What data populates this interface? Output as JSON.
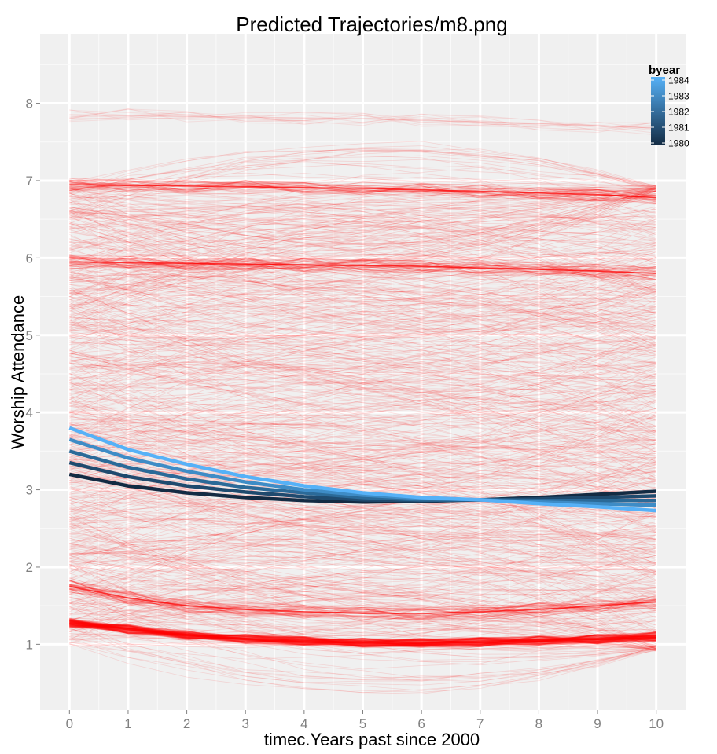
{
  "chart_data": {
    "type": "line",
    "title": "Predicted Trajectories/m8.png",
    "xlabel": "timec.Years past since 2000",
    "ylabel": "Worship Attendance",
    "xlim": [
      -0.5,
      10.5
    ],
    "ylim": [
      0.15,
      8.9
    ],
    "x_ticks": [
      "0",
      "1",
      "2",
      "3",
      "4",
      "5",
      "6",
      "7",
      "8",
      "9",
      "10"
    ],
    "y_ticks": [
      "1",
      "2",
      "3",
      "4",
      "5",
      "6",
      "7",
      "8"
    ],
    "grid": true,
    "legend": {
      "title": "byear",
      "position": "top-right",
      "type": "colorbar",
      "labels": [
        "1984",
        "1983",
        "1982",
        "1981",
        "1980"
      ],
      "range": [
        1980,
        1984
      ],
      "color_low": "#132B43",
      "color_high": "#56B1F7"
    },
    "individual_trajectories": {
      "color": "#FF0000",
      "description_note": "many faint individual predicted trajectories",
      "bands": [
        {
          "values": [
            1.28,
            1.2,
            1.12,
            1.07,
            1.04,
            1.02,
            1.02,
            1.03,
            1.05,
            1.07,
            1.1
          ]
        },
        {
          "values": [
            1.75,
            1.6,
            1.5,
            1.45,
            1.42,
            1.4,
            1.4,
            1.42,
            1.45,
            1.5,
            1.55
          ]
        },
        {
          "values": [
            5.95,
            5.94,
            5.93,
            5.92,
            5.91,
            5.9,
            5.89,
            5.87,
            5.85,
            5.83,
            5.8
          ]
        },
        {
          "values": [
            6.95,
            6.94,
            6.93,
            6.92,
            6.91,
            6.9,
            6.88,
            6.86,
            6.84,
            6.82,
            6.78
          ]
        },
        {
          "values": [
            7.85,
            7.84,
            7.83,
            7.82,
            7.81,
            7.8,
            7.78,
            7.76,
            7.74,
            7.71,
            7.68
          ]
        }
      ]
    },
    "series": [
      {
        "name": "1980",
        "color": "#132B43",
        "x": [
          0,
          1,
          2,
          3,
          4,
          5,
          6,
          7,
          8,
          9,
          10
        ],
        "values": [
          3.2,
          3.05,
          2.96,
          2.9,
          2.86,
          2.84,
          2.85,
          2.87,
          2.9,
          2.94,
          2.98
        ]
      },
      {
        "name": "1981",
        "color": "#1F4A6E",
        "x": [
          0,
          1,
          2,
          3,
          4,
          5,
          6,
          7,
          8,
          9,
          10
        ],
        "values": [
          3.35,
          3.17,
          3.05,
          2.97,
          2.91,
          2.87,
          2.86,
          2.87,
          2.88,
          2.9,
          2.92
        ]
      },
      {
        "name": "1982",
        "color": "#2B6A98",
        "x": [
          0,
          1,
          2,
          3,
          4,
          5,
          6,
          7,
          8,
          9,
          10
        ],
        "values": [
          3.5,
          3.29,
          3.14,
          3.03,
          2.96,
          2.9,
          2.87,
          2.87,
          2.86,
          2.86,
          2.86
        ]
      },
      {
        "name": "1983",
        "color": "#3E8CC6",
        "x": [
          0,
          1,
          2,
          3,
          4,
          5,
          6,
          7,
          8,
          9,
          10
        ],
        "values": [
          3.65,
          3.41,
          3.24,
          3.1,
          3.0,
          2.93,
          2.89,
          2.87,
          2.84,
          2.82,
          2.8
        ]
      },
      {
        "name": "1984",
        "color": "#56B1F7",
        "x": [
          0,
          1,
          2,
          3,
          4,
          5,
          6,
          7,
          8,
          9,
          10
        ],
        "values": [
          3.8,
          3.52,
          3.33,
          3.17,
          3.05,
          2.96,
          2.9,
          2.87,
          2.82,
          2.78,
          2.73
        ]
      }
    ]
  }
}
